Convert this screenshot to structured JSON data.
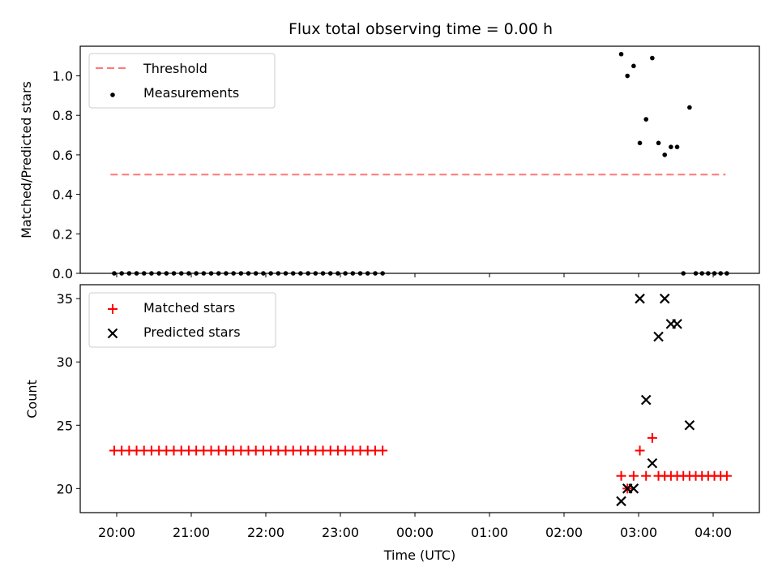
{
  "chart_data": [
    {
      "type": "scatter",
      "title": "Flux total observing time = 0.00 h",
      "xlabel": "",
      "ylabel": "Matched/Predicted stars",
      "ylim": [
        0,
        1.15
      ],
      "yticks": [
        "0.0",
        "0.2",
        "0.4",
        "0.6",
        "0.8",
        "1.0"
      ],
      "legend": "top-left",
      "threshold": {
        "name": "Threshold",
        "value": 0.5,
        "x_range": [
          "19:55",
          "04:10"
        ],
        "color": "#ff7777"
      },
      "series": [
        {
          "name": "Measurements",
          "color": "#000000",
          "x": [
            "19:58",
            "20:04",
            "20:10",
            "20:16",
            "20:22",
            "20:28",
            "20:34",
            "20:40",
            "20:46",
            "20:52",
            "20:58",
            "21:04",
            "21:10",
            "21:16",
            "21:22",
            "21:28",
            "21:34",
            "21:40",
            "21:46",
            "21:52",
            "21:58",
            "22:04",
            "22:10",
            "22:16",
            "22:22",
            "22:28",
            "22:34",
            "22:40",
            "22:46",
            "22:52",
            "22:58",
            "23:04",
            "23:10",
            "23:16",
            "23:22",
            "23:28",
            "23:34",
            "02:46",
            "02:51",
            "02:56",
            "03:01",
            "03:06",
            "03:11",
            "03:16",
            "03:21",
            "03:26",
            "03:31",
            "03:36",
            "03:41",
            "03:46",
            "03:51",
            "03:56",
            "04:01",
            "04:06",
            "04:11"
          ],
          "y": [
            0,
            0,
            0,
            0,
            0,
            0,
            0,
            0,
            0,
            0,
            0,
            0,
            0,
            0,
            0,
            0,
            0,
            0,
            0,
            0,
            0,
            0,
            0,
            0,
            0,
            0,
            0,
            0,
            0,
            0,
            0,
            0,
            0,
            0,
            0,
            0,
            0,
            1.11,
            1.0,
            1.05,
            0.66,
            0.78,
            1.09,
            0.66,
            0.6,
            0.64,
            0.64,
            0,
            0.84,
            0,
            0,
            0,
            0,
            0,
            0
          ]
        }
      ]
    },
    {
      "type": "scatter",
      "title": "",
      "xlabel": "Time (UTC)",
      "ylabel": "Count",
      "ylim": [
        18.1,
        36.1
      ],
      "yticks": [
        "20",
        "25",
        "30",
        "35"
      ],
      "xticks": [
        "20:00",
        "21:00",
        "22:00",
        "23:00",
        "00:00",
        "01:00",
        "02:00",
        "03:00",
        "04:00"
      ],
      "legend": "top-left",
      "series": [
        {
          "name": "Matched stars",
          "color": "#ff0000",
          "marker": "+",
          "x": [
            "19:58",
            "20:04",
            "20:10",
            "20:16",
            "20:22",
            "20:28",
            "20:34",
            "20:40",
            "20:46",
            "20:52",
            "20:58",
            "21:04",
            "21:10",
            "21:16",
            "21:22",
            "21:28",
            "21:34",
            "21:40",
            "21:46",
            "21:52",
            "21:58",
            "22:04",
            "22:10",
            "22:16",
            "22:22",
            "22:28",
            "22:34",
            "22:40",
            "22:46",
            "22:52",
            "22:58",
            "23:04",
            "23:10",
            "23:16",
            "23:22",
            "23:28",
            "23:34",
            "02:46",
            "02:51",
            "02:56",
            "03:01",
            "03:06",
            "03:11",
            "03:16",
            "03:21",
            "03:26",
            "03:31",
            "03:36",
            "03:41",
            "03:46",
            "03:51",
            "03:56",
            "04:01",
            "04:06",
            "04:11"
          ],
          "y": [
            23,
            23,
            23,
            23,
            23,
            23,
            23,
            23,
            23,
            23,
            23,
            23,
            23,
            23,
            23,
            23,
            23,
            23,
            23,
            23,
            23,
            23,
            23,
            23,
            23,
            23,
            23,
            23,
            23,
            23,
            23,
            23,
            23,
            23,
            23,
            23,
            23,
            21,
            20,
            21,
            23,
            21,
            24,
            21,
            21,
            21,
            21,
            21,
            21,
            21,
            21,
            21,
            21,
            21,
            21
          ]
        },
        {
          "name": "Predicted stars",
          "color": "#000000",
          "marker": "x",
          "x": [
            "02:46",
            "02:51",
            "02:56",
            "03:01",
            "03:06",
            "03:11",
            "03:16",
            "03:21",
            "03:26",
            "03:31",
            "03:41"
          ],
          "y": [
            19,
            20,
            20,
            35,
            27,
            22,
            32,
            35,
            33,
            33,
            25
          ]
        }
      ]
    }
  ]
}
